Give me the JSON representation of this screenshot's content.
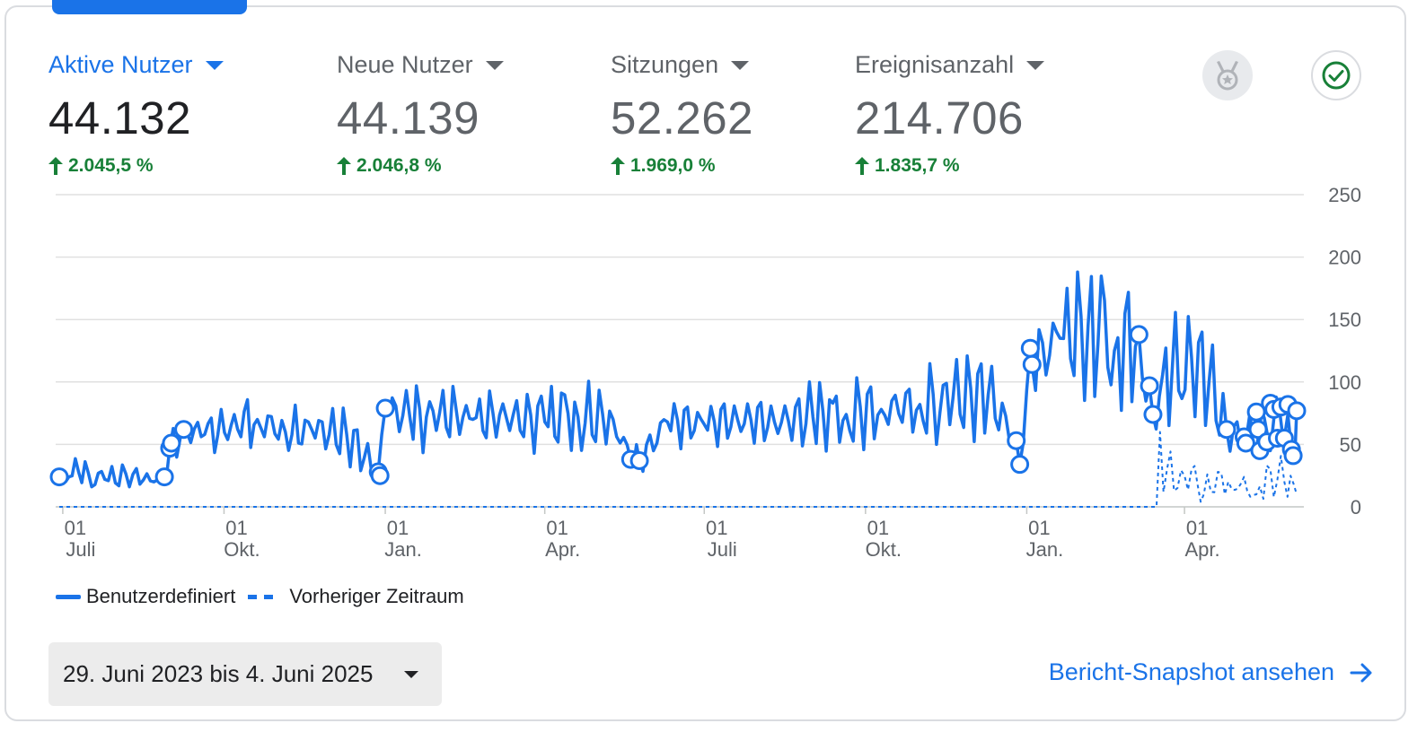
{
  "metrics": [
    {
      "label": "Aktive Nutzer",
      "value": "44.132",
      "change": "2.045,5 %"
    },
    {
      "label": "Neue Nutzer",
      "value": "44.139",
      "change": "2.046,8 %"
    },
    {
      "label": "Sitzungen",
      "value": "52.262",
      "change": "1.969,0 %"
    },
    {
      "label": "Ereignisanzahl",
      "value": "214.706",
      "change": "1.835,7 %"
    }
  ],
  "icons": {
    "medal": "medal-icon",
    "check": "check-circle-icon",
    "arrow": "arrow-right-icon"
  },
  "colors": {
    "accent": "#1a73e8",
    "positive": "#188038",
    "grid": "#e0e0e0"
  },
  "legend": {
    "current": "Benutzerdefiniert",
    "previous": "Vorheriger Zeitraum"
  },
  "date_range": "29. Juni 2023 bis 4. Juni 2025",
  "snapshot_link": "Bericht-Snapshot ansehen",
  "chart_data": {
    "type": "line",
    "x_start": "2023-06-29",
    "x_end": "2025-06-04",
    "ylim": [
      0,
      250
    ],
    "y_ticks": [
      "0",
      "50",
      "100",
      "150",
      "200",
      "250"
    ],
    "x_ticks": [
      {
        "date": "2023-07-01",
        "day": "01",
        "month": "Juli"
      },
      {
        "date": "2023-10-01",
        "day": "01",
        "month": "Okt."
      },
      {
        "date": "2024-01-01",
        "day": "01",
        "month": "Jan."
      },
      {
        "date": "2024-04-01",
        "day": "01",
        "month": "Apr."
      },
      {
        "date": "2024-07-01",
        "day": "01",
        "month": "Juli"
      },
      {
        "date": "2024-10-01",
        "day": "01",
        "month": "Okt."
      },
      {
        "date": "2025-01-01",
        "day": "01",
        "month": "Jan."
      },
      {
        "date": "2025-04-01",
        "day": "01",
        "month": "Apr."
      }
    ],
    "grid": true,
    "legend_position": "bottom-left",
    "series": [
      {
        "name": "Benutzerdefiniert",
        "style": "solid",
        "points": [
          [
            "2023-06-29",
            24
          ],
          [
            "2023-07-10",
            28
          ],
          [
            "2023-07-25",
            22
          ],
          [
            "2023-08-10",
            26
          ],
          [
            "2023-08-22",
            20
          ],
          [
            "2023-08-28",
            24
          ],
          [
            "2023-08-31",
            47
          ],
          [
            "2023-09-08",
            62
          ],
          [
            "2023-09-20",
            58
          ],
          [
            "2023-10-05",
            65
          ],
          [
            "2023-10-20",
            70
          ],
          [
            "2023-11-05",
            60
          ],
          [
            "2023-11-20",
            62
          ],
          [
            "2023-12-10",
            58
          ],
          [
            "2023-12-28",
            28
          ],
          [
            "2024-01-01",
            79
          ],
          [
            "2024-01-15",
            72
          ],
          [
            "2024-02-01",
            75
          ],
          [
            "2024-02-20",
            70
          ],
          [
            "2024-03-10",
            72
          ],
          [
            "2024-04-01",
            68
          ],
          [
            "2024-04-20",
            72
          ],
          [
            "2024-05-10",
            70
          ],
          [
            "2024-05-20",
            38
          ],
          [
            "2024-05-25",
            37
          ],
          [
            "2024-06-10",
            68
          ],
          [
            "2024-07-01",
            66
          ],
          [
            "2024-07-20",
            70
          ],
          [
            "2024-08-10",
            68
          ],
          [
            "2024-09-01",
            72
          ],
          [
            "2024-09-20",
            74
          ],
          [
            "2024-10-10",
            78
          ],
          [
            "2024-11-01",
            82
          ],
          [
            "2024-11-20",
            88
          ],
          [
            "2024-12-10",
            90
          ],
          [
            "2024-12-26",
            53
          ],
          [
            "2024-12-28",
            34
          ],
          [
            "2025-01-03",
            127
          ],
          [
            "2025-01-04",
            114
          ],
          [
            "2025-01-20",
            135
          ],
          [
            "2025-02-05",
            145
          ],
          [
            "2025-02-20",
            125
          ],
          [
            "2025-03-06",
            138
          ],
          [
            "2025-03-12",
            97
          ],
          [
            "2025-03-14",
            74
          ],
          [
            "2025-03-25",
            110
          ],
          [
            "2025-04-05",
            120
          ],
          [
            "2025-04-15",
            100
          ],
          [
            "2025-04-25",
            62
          ],
          [
            "2025-05-05",
            56
          ],
          [
            "2025-05-10",
            52
          ],
          [
            "2025-05-15",
            76
          ],
          [
            "2025-05-18",
            60
          ],
          [
            "2025-05-20",
            45
          ],
          [
            "2025-05-25",
            80
          ],
          [
            "2025-05-28",
            55
          ],
          [
            "2025-05-30",
            74
          ],
          [
            "2025-06-01",
            46
          ],
          [
            "2025-06-03",
            40
          ],
          [
            "2025-06-04",
            77
          ]
        ],
        "markers": [
          [
            "2023-06-29",
            24
          ],
          [
            "2023-08-28",
            24
          ],
          [
            "2023-08-31",
            47
          ],
          [
            "2023-09-01",
            51
          ],
          [
            "2023-09-08",
            62
          ],
          [
            "2023-12-28",
            28
          ],
          [
            "2023-12-29",
            25
          ],
          [
            "2024-01-01",
            79
          ],
          [
            "2024-05-20",
            38
          ],
          [
            "2024-05-25",
            37
          ],
          [
            "2024-12-26",
            53
          ],
          [
            "2024-12-28",
            34
          ],
          [
            "2025-01-03",
            127
          ],
          [
            "2025-01-04",
            114
          ],
          [
            "2025-03-06",
            138
          ],
          [
            "2025-03-12",
            97
          ],
          [
            "2025-03-14",
            74
          ],
          [
            "2025-04-25",
            62
          ],
          [
            "2025-05-05",
            56
          ],
          [
            "2025-05-06",
            51
          ],
          [
            "2025-05-12",
            76
          ],
          [
            "2025-05-13",
            62
          ],
          [
            "2025-05-14",
            45
          ],
          [
            "2025-05-18",
            52
          ],
          [
            "2025-05-20",
            83
          ],
          [
            "2025-05-22",
            78
          ],
          [
            "2025-05-24",
            55
          ],
          [
            "2025-05-26",
            80
          ],
          [
            "2025-05-28",
            55
          ],
          [
            "2025-05-30",
            82
          ],
          [
            "2025-06-01",
            46
          ],
          [
            "2025-06-02",
            41
          ],
          [
            "2025-06-04",
            77
          ]
        ]
      },
      {
        "name": "Vorheriger Zeitraum",
        "style": "dashed",
        "points": [
          [
            "2023-06-29",
            0
          ],
          [
            "2025-03-16",
            0
          ],
          [
            "2025-03-18",
            60
          ],
          [
            "2025-03-22",
            30
          ],
          [
            "2025-03-28",
            15
          ],
          [
            "2025-04-05",
            30
          ],
          [
            "2025-04-12",
            10
          ],
          [
            "2025-04-20",
            28
          ],
          [
            "2025-04-28",
            14
          ],
          [
            "2025-05-05",
            24
          ],
          [
            "2025-05-12",
            10
          ],
          [
            "2025-05-20",
            30
          ],
          [
            "2025-05-28",
            20
          ],
          [
            "2025-06-04",
            10
          ]
        ]
      }
    ]
  }
}
